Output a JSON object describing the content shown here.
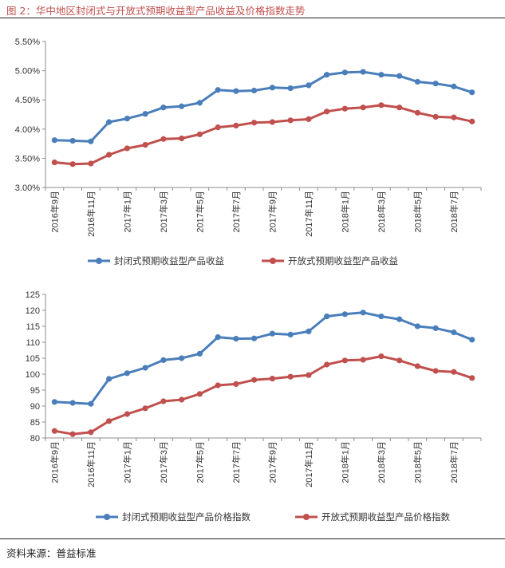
{
  "figure": {
    "title": "图 2：华中地区封闭式与开放式预期收益型产品收益及价格指数走势",
    "source": "资料来源：普益标准"
  },
  "colors": {
    "series_1": "#4a7ebb",
    "series_2": "#c0504d",
    "axis": "#8c8c8c"
  },
  "chart_data": [
    {
      "type": "line",
      "title": "",
      "x": [
        "2016年9月",
        "2016年10月",
        "2016年11月",
        "2016年12月",
        "2017年1月",
        "2017年2月",
        "2017年3月",
        "2017年4月",
        "2017年5月",
        "2017年6月",
        "2017年7月",
        "2017年8月",
        "2017年9月",
        "2017年10月",
        "2017年11月",
        "2017年12月",
        "2018年1月",
        "2018年2月",
        "2018年3月",
        "2018年4月",
        "2018年5月",
        "2018年6月",
        "2018年7月",
        "2018年8月"
      ],
      "tick_labels": [
        "2016年9月",
        "2016年11月",
        "2017年1月",
        "2017年3月",
        "2017年5月",
        "2017年7月",
        "2017年9月",
        "2017年11月",
        "2018年1月",
        "2018年3月",
        "2018年5月",
        "2018年7月"
      ],
      "tick_every": 2,
      "ylim": [
        3.0,
        5.5
      ],
      "yticks": [
        3.0,
        3.5,
        4.0,
        4.5,
        5.0,
        5.5
      ],
      "ytick_labels": [
        "3.00%",
        "3.50%",
        "4.00%",
        "4.50%",
        "5.00%",
        "5.50%"
      ],
      "series": [
        {
          "name": "封闭式预期收益型产品收益",
          "values": [
            3.81,
            3.8,
            3.79,
            4.12,
            4.18,
            4.26,
            4.37,
            4.39,
            4.45,
            4.67,
            4.65,
            4.66,
            4.71,
            4.7,
            4.75,
            4.93,
            4.97,
            4.98,
            4.93,
            4.91,
            4.81,
            4.78,
            4.73,
            4.63
          ]
        },
        {
          "name": "开放式预期收益型产品收益",
          "values": [
            3.43,
            3.4,
            3.41,
            3.56,
            3.67,
            3.73,
            3.83,
            3.84,
            3.91,
            4.03,
            4.06,
            4.11,
            4.12,
            4.15,
            4.17,
            4.3,
            4.35,
            4.37,
            4.41,
            4.37,
            4.28,
            4.21,
            4.2,
            4.13
          ]
        }
      ]
    },
    {
      "type": "line",
      "title": "",
      "x": [
        "2016年9月",
        "2016年10月",
        "2016年11月",
        "2016年12月",
        "2017年1月",
        "2017年2月",
        "2017年3月",
        "2017年4月",
        "2017年5月",
        "2017年6月",
        "2017年7月",
        "2017年8月",
        "2017年9月",
        "2017年10月",
        "2017年11月",
        "2017年12月",
        "2018年1月",
        "2018年2月",
        "2018年3月",
        "2018年4月",
        "2018年5月",
        "2018年6月",
        "2018年7月",
        "2018年8月"
      ],
      "tick_labels": [
        "2016年9月",
        "2016年11月",
        "2017年1月",
        "2017年3月",
        "2017年5月",
        "2017年7月",
        "2017年9月",
        "2017年11月",
        "2018年1月",
        "2018年3月",
        "2018年5月",
        "2018年7月"
      ],
      "tick_every": 2,
      "ylim": [
        80,
        125
      ],
      "yticks": [
        80,
        85,
        90,
        95,
        100,
        105,
        110,
        115,
        120,
        125
      ],
      "ytick_labels": [
        "80",
        "85",
        "90",
        "95",
        "100",
        "105",
        "110",
        "115",
        "120",
        "125"
      ],
      "series": [
        {
          "name": "封闭式预期收益型产品价格指数",
          "values": [
            91.3,
            91.0,
            90.7,
            98.5,
            100.3,
            102.0,
            104.4,
            105.0,
            106.4,
            111.6,
            111.1,
            111.2,
            112.7,
            112.4,
            113.4,
            118.1,
            118.8,
            119.3,
            118.1,
            117.2,
            115.0,
            114.4,
            113.1,
            110.8
          ]
        },
        {
          "name": "开放式预期收益型产品价格指数",
          "values": [
            82.2,
            81.2,
            81.8,
            85.3,
            87.5,
            89.3,
            91.5,
            92.0,
            93.8,
            96.5,
            96.9,
            98.2,
            98.6,
            99.2,
            99.7,
            103.0,
            104.3,
            104.5,
            105.6,
            104.3,
            102.5,
            101.0,
            100.7,
            98.8
          ]
        }
      ]
    }
  ]
}
